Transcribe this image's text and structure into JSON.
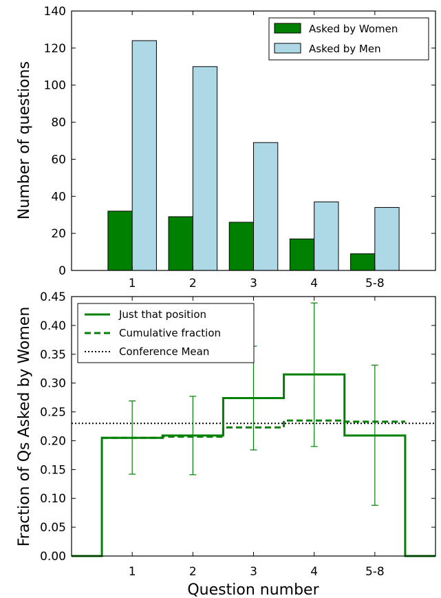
{
  "chart_data": [
    {
      "type": "bar",
      "categories": [
        "1",
        "2",
        "3",
        "4",
        "5-8"
      ],
      "series": [
        {
          "name": "Asked by Women",
          "values": [
            32,
            29,
            26,
            17,
            9
          ],
          "color": "#008000"
        },
        {
          "name": "Asked by Men",
          "values": [
            124,
            110,
            69,
            37,
            34
          ],
          "color": "#add8e6"
        }
      ],
      "xlabel": "",
      "ylabel": "Number of questions",
      "ylim": [
        0,
        140
      ],
      "yticks": [
        0,
        20,
        40,
        60,
        80,
        100,
        120,
        140
      ],
      "xlim": [
        0,
        6
      ],
      "legend_position": "top-right",
      "grid": false
    },
    {
      "type": "line",
      "categories": [
        "1",
        "2",
        "3",
        "4",
        "5-8"
      ],
      "series": [
        {
          "name": "Just that position",
          "style": "solid-step",
          "color": "#008000",
          "values": [
            0.205,
            0.209,
            0.274,
            0.315,
            0.209
          ],
          "error_low": [
            0.142,
            0.141,
            0.184,
            0.19,
            0.088
          ],
          "error_high": [
            0.269,
            0.277,
            0.364,
            0.439,
            0.331
          ]
        },
        {
          "name": "Cumulative fraction",
          "style": "dashed-step",
          "color": "#008000",
          "values": [
            0.205,
            0.207,
            0.223,
            0.235,
            0.233
          ]
        },
        {
          "name": "Conference Mean",
          "style": "dotted",
          "color": "#000000",
          "value": 0.23
        }
      ],
      "xlabel": "Question number",
      "ylabel": "Fraction of Qs Asked by Women",
      "ylim": [
        0,
        0.45
      ],
      "yticks": [
        "0.00",
        "0.05",
        "0.10",
        "0.15",
        "0.20",
        "0.25",
        "0.30",
        "0.35",
        "0.40",
        "0.45"
      ],
      "xlim": [
        0,
        6
      ],
      "legend_position": "top-left",
      "grid": false
    }
  ]
}
